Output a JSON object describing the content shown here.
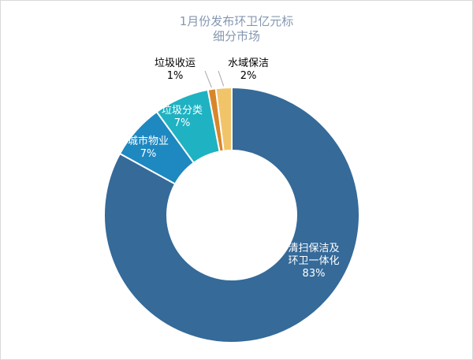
{
  "chart_data": {
    "type": "pie",
    "subtype": "doughnut",
    "title": [
      "1月份发布环卫亿元标",
      "细分市场"
    ],
    "slices": [
      {
        "label": "清扫保洁及环卫一体化",
        "label_lines": [
          "清扫保洁及",
          "环卫一体化"
        ],
        "value": 83,
        "pct_label": "83%",
        "color": "#356a99"
      },
      {
        "label": "城市物业",
        "label_lines": [
          "城市物业"
        ],
        "value": 7,
        "pct_label": "7%",
        "color": "#1e88c0"
      },
      {
        "label": "垃圾分类",
        "label_lines": [
          "垃圾分类"
        ],
        "value": 7,
        "pct_label": "7%",
        "color": "#1fb2c2"
      },
      {
        "label": "垃圾收运",
        "label_lines": [
          "垃圾收运"
        ],
        "value": 1,
        "pct_label": "1%",
        "color": "#d9862a"
      },
      {
        "label": "水域保洁",
        "label_lines": [
          "水域保洁"
        ],
        "value": 2,
        "pct_label": "2%",
        "color": "#f2c46a"
      }
    ]
  }
}
